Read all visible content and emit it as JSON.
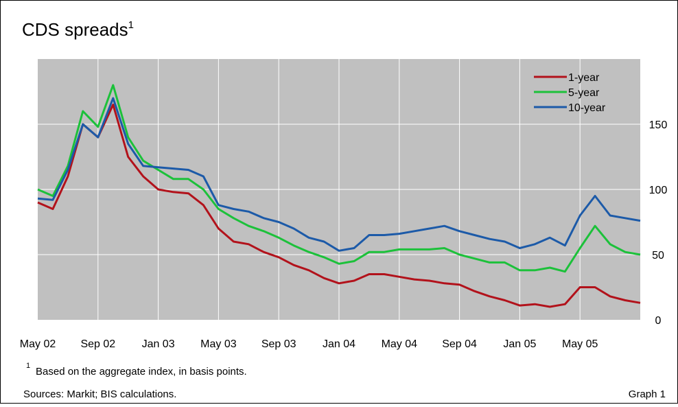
{
  "chart_data": {
    "type": "line",
    "title": "CDS spreads",
    "title_note": "1",
    "categories": [
      "May 02",
      null,
      null,
      null,
      "Sep 02",
      null,
      null,
      null,
      "Jan 03",
      null,
      null,
      null,
      "May 03",
      null,
      null,
      null,
      "Sep 03",
      null,
      null,
      null,
      "Jan 04",
      null,
      null,
      null,
      "May 04",
      null,
      null,
      null,
      "Sep 04",
      null,
      null,
      null,
      "Jan 05",
      null,
      null,
      null,
      "May 05",
      null,
      null,
      null,
      null
    ],
    "series": [
      {
        "name": "1-year",
        "color": "#b2121b",
        "values": [
          90,
          85,
          110,
          150,
          140,
          165,
          125,
          110,
          100,
          98,
          97,
          88,
          70,
          60,
          58,
          52,
          48,
          42,
          38,
          32,
          28,
          30,
          35,
          35,
          33,
          31,
          30,
          28,
          27,
          22,
          18,
          15,
          11,
          12,
          10,
          12,
          25,
          25,
          18,
          15,
          13
        ]
      },
      {
        "name": "5-year",
        "color": "#1cc13a",
        "values": [
          100,
          95,
          118,
          160,
          148,
          180,
          140,
          122,
          115,
          108,
          108,
          100,
          85,
          78,
          72,
          68,
          63,
          57,
          52,
          48,
          43,
          45,
          52,
          52,
          54,
          54,
          54,
          55,
          50,
          47,
          44,
          44,
          38,
          38,
          40,
          37,
          55,
          72,
          58,
          52,
          50
        ]
      },
      {
        "name": "10-year",
        "color": "#1c5aa8",
        "values": [
          93,
          92,
          115,
          150,
          140,
          170,
          135,
          118,
          117,
          116,
          115,
          110,
          88,
          85,
          83,
          78,
          75,
          70,
          63,
          60,
          53,
          55,
          65,
          65,
          66,
          68,
          70,
          72,
          68,
          65,
          62,
          60,
          55,
          58,
          63,
          57,
          80,
          95,
          80,
          78,
          76
        ]
      }
    ],
    "ylim": [
      0,
      200
    ],
    "yticks": [
      0,
      50,
      100,
      150
    ],
    "grid": true,
    "legend": "top-right",
    "footnote": {
      "marker": "1",
      "text": "Based on the aggregate index, in basis points."
    },
    "sources": "Sources: Markit; BIS calculations.",
    "graph_label": "Graph 1"
  }
}
